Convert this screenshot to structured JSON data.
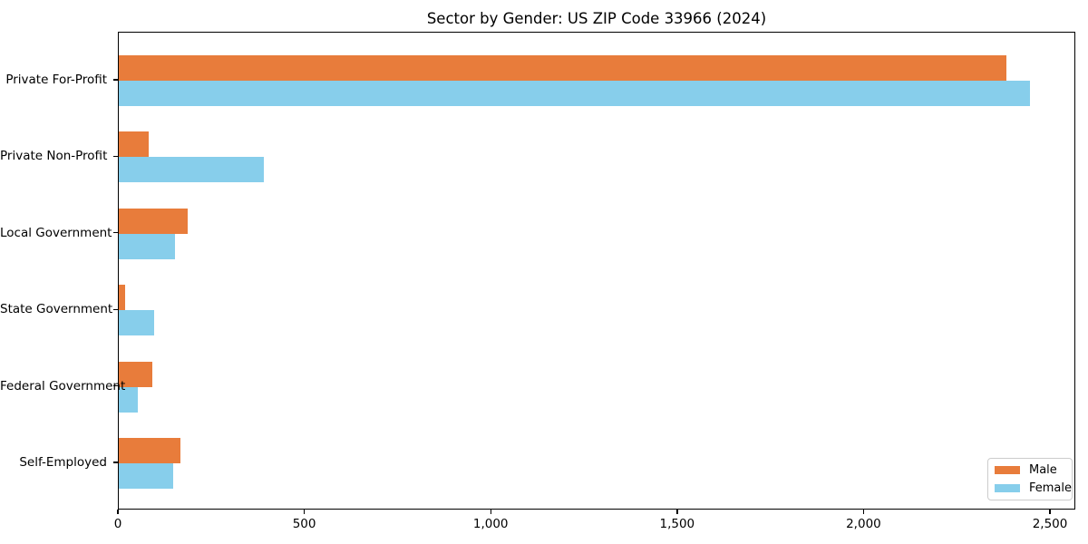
{
  "chart_data": {
    "type": "bar",
    "orientation": "horizontal",
    "title": "Sector by Gender: US ZIP Code 33966 (2024)",
    "xlabel": "",
    "ylabel": "",
    "categories": [
      "Private For-Profit",
      "Private Non-Profit",
      "Local Government",
      "State Government",
      "Federal Government",
      "Self-Employed"
    ],
    "series": [
      {
        "name": "Male",
        "color": "#e87c3b",
        "values": [
          2380,
          80,
          185,
          18,
          90,
          165
        ]
      },
      {
        "name": "Female",
        "color": "#87ceeb",
        "values": [
          2445,
          390,
          150,
          95,
          50,
          145
        ]
      }
    ],
    "xlim": [
      0,
      2568
    ],
    "x_ticks": [
      0,
      500,
      1000,
      1500,
      2000,
      2500
    ],
    "x_tick_labels": [
      "0",
      "500",
      "1,000",
      "1,500",
      "2,000",
      "2,500"
    ],
    "legend_position": "lower right",
    "grid": false,
    "axis_color": "#000000",
    "legend_border_color": "#cccccc"
  }
}
